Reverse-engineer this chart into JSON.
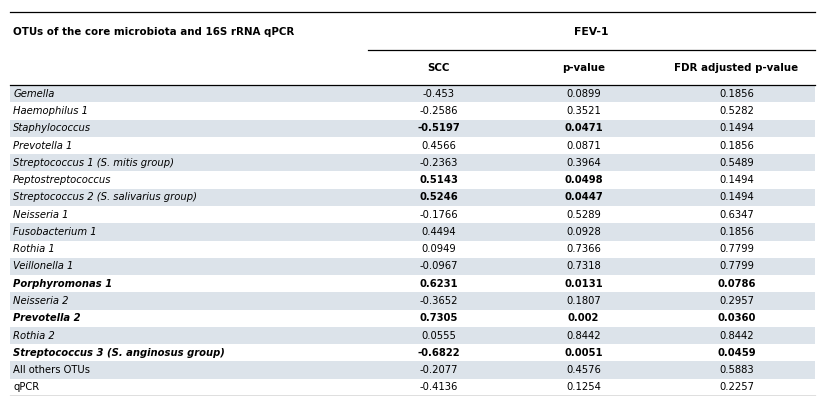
{
  "col_header_row1_left": "OTUs of the core microbiota and 16S rRNA qPCR",
  "col_header_row1_right": "FEV-1",
  "col_header_row2": [
    "SCC",
    "p-value",
    "FDR adjusted p-value"
  ],
  "rows": [
    {
      "name": "Gemella",
      "italic": true,
      "bold_name": false,
      "scc": "-0.453",
      "pval": "0.0899",
      "fdr": "0.1856",
      "bold_scc": false,
      "bold_pval": false,
      "bold_fdr": false
    },
    {
      "name": "Haemophilus 1",
      "italic": true,
      "bold_name": false,
      "scc": "-0.2586",
      "pval": "0.3521",
      "fdr": "0.5282",
      "bold_scc": false,
      "bold_pval": false,
      "bold_fdr": false
    },
    {
      "name": "Staphylococcus",
      "italic": true,
      "bold_name": false,
      "scc": "-0.5197",
      "pval": "0.0471",
      "fdr": "0.1494",
      "bold_scc": true,
      "bold_pval": true,
      "bold_fdr": false
    },
    {
      "name": "Prevotella 1",
      "italic": true,
      "bold_name": false,
      "scc": "0.4566",
      "pval": "0.0871",
      "fdr": "0.1856",
      "bold_scc": false,
      "bold_pval": false,
      "bold_fdr": false
    },
    {
      "name": "Streptococcus 1 (S. mitis group)",
      "italic": true,
      "bold_name": false,
      "scc": "-0.2363",
      "pval": "0.3964",
      "fdr": "0.5489",
      "bold_scc": false,
      "bold_pval": false,
      "bold_fdr": false
    },
    {
      "name": "Peptostreptococcus",
      "italic": true,
      "bold_name": false,
      "scc": "0.5143",
      "pval": "0.0498",
      "fdr": "0.1494",
      "bold_scc": true,
      "bold_pval": true,
      "bold_fdr": false
    },
    {
      "name": "Streptococcus 2 (S. salivarius group)",
      "italic": true,
      "bold_name": false,
      "scc": "0.5246",
      "pval": "0.0447",
      "fdr": "0.1494",
      "bold_scc": true,
      "bold_pval": true,
      "bold_fdr": false
    },
    {
      "name": "Neisseria 1",
      "italic": true,
      "bold_name": false,
      "scc": "-0.1766",
      "pval": "0.5289",
      "fdr": "0.6347",
      "bold_scc": false,
      "bold_pval": false,
      "bold_fdr": false
    },
    {
      "name": "Fusobacterium 1",
      "italic": true,
      "bold_name": false,
      "scc": "0.4494",
      "pval": "0.0928",
      "fdr": "0.1856",
      "bold_scc": false,
      "bold_pval": false,
      "bold_fdr": false
    },
    {
      "name": "Rothia 1",
      "italic": true,
      "bold_name": false,
      "scc": "0.0949",
      "pval": "0.7366",
      "fdr": "0.7799",
      "bold_scc": false,
      "bold_pval": false,
      "bold_fdr": false
    },
    {
      "name": "Veillonella 1",
      "italic": true,
      "bold_name": false,
      "scc": "-0.0967",
      "pval": "0.7318",
      "fdr": "0.7799",
      "bold_scc": false,
      "bold_pval": false,
      "bold_fdr": false
    },
    {
      "name": "Porphyromonas 1",
      "italic": true,
      "bold_name": true,
      "scc": "0.6231",
      "pval": "0.0131",
      "fdr": "0.0786",
      "bold_scc": true,
      "bold_pval": true,
      "bold_fdr": true
    },
    {
      "name": "Neisseria 2",
      "italic": true,
      "bold_name": false,
      "scc": "-0.3652",
      "pval": "0.1807",
      "fdr": "0.2957",
      "bold_scc": false,
      "bold_pval": false,
      "bold_fdr": false
    },
    {
      "name": "Prevotella 2",
      "italic": true,
      "bold_name": true,
      "scc": "0.7305",
      "pval": "0.002",
      "fdr": "0.0360",
      "bold_scc": true,
      "bold_pval": true,
      "bold_fdr": true
    },
    {
      "name": "Rothia 2",
      "italic": true,
      "bold_name": false,
      "scc": "0.0555",
      "pval": "0.8442",
      "fdr": "0.8442",
      "bold_scc": false,
      "bold_pval": false,
      "bold_fdr": false
    },
    {
      "name": "Streptococcus 3 (S. anginosus group)",
      "italic": true,
      "bold_name": true,
      "scc": "-0.6822",
      "pval": "0.0051",
      "fdr": "0.0459",
      "bold_scc": true,
      "bold_pval": true,
      "bold_fdr": true
    },
    {
      "name": "All others OTUs",
      "italic": false,
      "bold_name": false,
      "scc": "-0.2077",
      "pval": "0.4576",
      "fdr": "0.5883",
      "bold_scc": false,
      "bold_pval": false,
      "bold_fdr": false
    },
    {
      "name": "qPCR",
      "italic": false,
      "bold_name": false,
      "scc": "-0.4136",
      "pval": "0.1254",
      "fdr": "0.2257",
      "bold_scc": false,
      "bold_pval": false,
      "bold_fdr": false
    }
  ],
  "row_bg_odd": "#dce3ea",
  "row_bg_even": "#ffffff",
  "fig_width": 8.19,
  "fig_height": 3.96,
  "dpi": 100
}
